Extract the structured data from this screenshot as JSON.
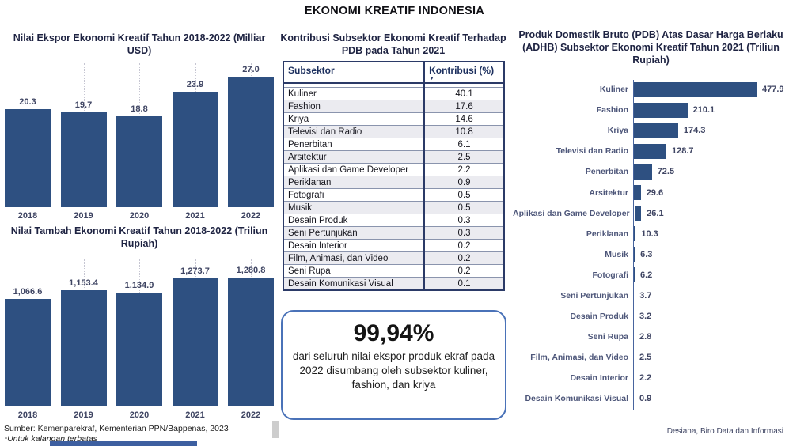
{
  "page": {
    "title": "EKONOMI KREATIF INDONESIA",
    "source": "Sumber: Kemenparekraf, Kementerian PPN/Bappenas, 2023",
    "note": "*Untuk kalangan terbatas",
    "credit": "Desiana, Biro Data dan Informasi"
  },
  "colors": {
    "bar": "#2E5081",
    "table_border": "#2b3a67",
    "table_stripe": "#ebebf0",
    "callout_border": "#4a72b8",
    "label_text": "#3f4563"
  },
  "callout": {
    "headline": "99,94%",
    "body": "dari seluruh nilai ekspor produk ekraf pada 2022 disumbang oleh subsektor kuliner, fashion, dan kriya"
  },
  "table_ui": {
    "sort_indicator": "▼"
  },
  "chart_data": [
    {
      "type": "bar",
      "title": "Nilai Ekspor Ekonomi Kreatif Tahun 2018-2022 (Milliar USD)",
      "categories": [
        "2018",
        "2019",
        "2020",
        "2021",
        "2022"
      ],
      "values": [
        20.3,
        19.7,
        18.8,
        23.9,
        27.0
      ],
      "labels": [
        "20.3",
        "19.7",
        "18.8",
        "23.9",
        "27.0"
      ],
      "xlabel": "",
      "ylabel": "Milliar USD",
      "ylim": [
        0,
        30
      ],
      "grid": "dotted-vertical",
      "legend": "none"
    },
    {
      "type": "bar",
      "title": "Nilai Tambah Ekonomi Kreatif Tahun 2018-2022 (Triliun Rupiah)",
      "categories": [
        "2018",
        "2019",
        "2020",
        "2021",
        "2022"
      ],
      "values": [
        1066.6,
        1153.4,
        1134.9,
        1273.7,
        1280.8
      ],
      "labels": [
        "1,066.6",
        "1,153.4",
        "1,134.9",
        "1,273.7",
        "1,280.8"
      ],
      "xlabel": "",
      "ylabel": "Triliun Rupiah",
      "ylim": [
        0,
        1400
      ],
      "grid": "dotted-vertical",
      "legend": "none"
    },
    {
      "type": "table",
      "title": "Kontribusi Subsektor Ekonomi Kreatif Terhadap PDB pada Tahun 2021",
      "columns": [
        "Subsektor",
        "Kontribusi (%)"
      ],
      "rows": [
        [
          "Kuliner",
          "40.1"
        ],
        [
          "Fashion",
          "17.6"
        ],
        [
          "Kriya",
          "14.6"
        ],
        [
          "Televisi dan Radio",
          "10.8"
        ],
        [
          "Penerbitan",
          "6.1"
        ],
        [
          "Arsitektur",
          "2.5"
        ],
        [
          "Aplikasi dan Game Developer",
          "2.2"
        ],
        [
          "Periklanan",
          "0.9"
        ],
        [
          "Fotografi",
          "0.5"
        ],
        [
          "Musik",
          "0.5"
        ],
        [
          "Desain Produk",
          "0.3"
        ],
        [
          "Seni Pertunjukan",
          "0.3"
        ],
        [
          "Desain Interior",
          "0.2"
        ],
        [
          "Film, Animasi, dan Video",
          "0.2"
        ],
        [
          "Seni Rupa",
          "0.2"
        ],
        [
          "Desain Komunikasi Visual",
          "0.1"
        ]
      ]
    },
    {
      "type": "bar",
      "orientation": "horizontal",
      "title": "Produk Domestik Bruto (PDB) Atas Dasar Harga Berlaku (ADHB) Subsektor Ekonomi Kreatif Tahun 2021 (Triliun Rupiah)",
      "categories": [
        "Kuliner",
        "Fashion",
        "Kriya",
        "Televisi dan Radio",
        "Penerbitan",
        "Arsitektur",
        "Aplikasi dan Game Developer",
        "Periklanan",
        "Musik",
        "Fotografi",
        "Seni Pertunjukan",
        "Desain Produk",
        "Seni Rupa",
        "Film, Animasi, dan Video",
        "Desain Interior",
        "Desain Komunikasi Visual"
      ],
      "values": [
        477.9,
        210.1,
        174.3,
        128.7,
        72.5,
        29.6,
        26.1,
        10.3,
        6.3,
        6.2,
        3.7,
        3.2,
        2.8,
        2.5,
        2.2,
        0.9
      ],
      "labels": [
        "477.9",
        "210.1",
        "174.3",
        "128.7",
        "72.5",
        "29.6",
        "26.1",
        "10.3",
        "6.3",
        "6.2",
        "3.7",
        "3.2",
        "2.8",
        "2.5",
        "2.2",
        "0.9"
      ],
      "xlabel": "Triliun Rupiah",
      "ylabel": "",
      "xlim": [
        0,
        500
      ],
      "grid": "off",
      "legend": "none"
    }
  ]
}
